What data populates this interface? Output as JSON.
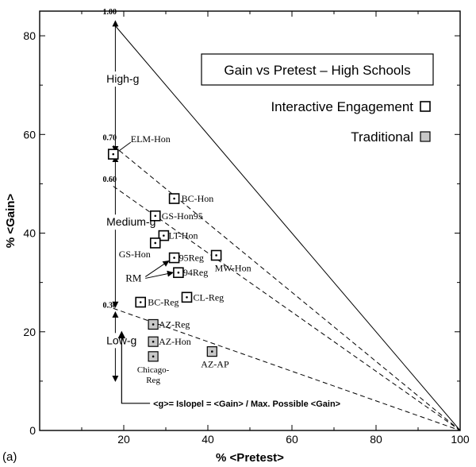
{
  "chart_data": {
    "type": "scatter",
    "panel_label": "(a)",
    "title": "Gain vs Pretest – High Schools",
    "xlabel": "% <Pretest>",
    "ylabel": "% <Gain>",
    "xlim": [
      0,
      100
    ],
    "ylim": [
      0,
      85
    ],
    "xticks": [
      20,
      40,
      60,
      80,
      100
    ],
    "yticks": [
      0,
      20,
      40,
      60,
      80
    ],
    "legend": {
      "placement": "top-right",
      "entries": [
        {
          "name": "Interactive Engagement",
          "marker": "open-square"
        },
        {
          "name": "Traditional",
          "marker": "shaded-square"
        }
      ]
    },
    "g_lines": [
      {
        "value": "1.00",
        "slope": 1.0,
        "style": "solid"
      },
      {
        "value": "0.70",
        "slope": 0.7,
        "style": "dashed"
      },
      {
        "value": "0.60",
        "slope": 0.6,
        "style": "dashed"
      },
      {
        "value": "0.30",
        "slope": 0.3,
        "style": "dashed"
      }
    ],
    "regions": [
      {
        "label": "High-g",
        "g_range": [
          0.7,
          1.0
        ]
      },
      {
        "label": "Medium-g",
        "g_range": [
          0.3,
          0.7
        ]
      },
      {
        "label": "Low-g",
        "g_range": [
          0.0,
          0.3
        ]
      }
    ],
    "series": [
      {
        "name": "Interactive Engagement",
        "points": [
          {
            "label": "ELM-Hon",
            "x": 17.5,
            "y": 56
          },
          {
            "label": "BC-Hon",
            "x": 32,
            "y": 47
          },
          {
            "label": "GS-Hon95",
            "x": 27.5,
            "y": 43.5
          },
          {
            "label": "LT-Hon",
            "x": 29.5,
            "y": 39.5
          },
          {
            "label": "GS-Hon",
            "x": 27.5,
            "y": 38
          },
          {
            "label": "95Reg",
            "x": 32,
            "y": 35
          },
          {
            "label": "94Reg",
            "x": 33,
            "y": 32
          },
          {
            "label": "MW-Hon",
            "x": 42,
            "y": 35.5
          },
          {
            "label": "CL-Reg",
            "x": 35,
            "y": 27
          },
          {
            "label": "BC-Reg",
            "x": 24,
            "y": 26
          }
        ]
      },
      {
        "name": "Traditional",
        "points": [
          {
            "label": "AZ-Reg",
            "x": 27,
            "y": 21.5
          },
          {
            "label": "AZ-Hon",
            "x": 27,
            "y": 18
          },
          {
            "label": "Chicago-Reg",
            "x": 27,
            "y": 15
          },
          {
            "label": "AZ-AP",
            "x": 41,
            "y": 16
          }
        ]
      }
    ],
    "annotations": {
      "rm_label": "RM",
      "formula": "<g>= Islopel = <Gain> / Max. Possible <Gain>"
    }
  }
}
